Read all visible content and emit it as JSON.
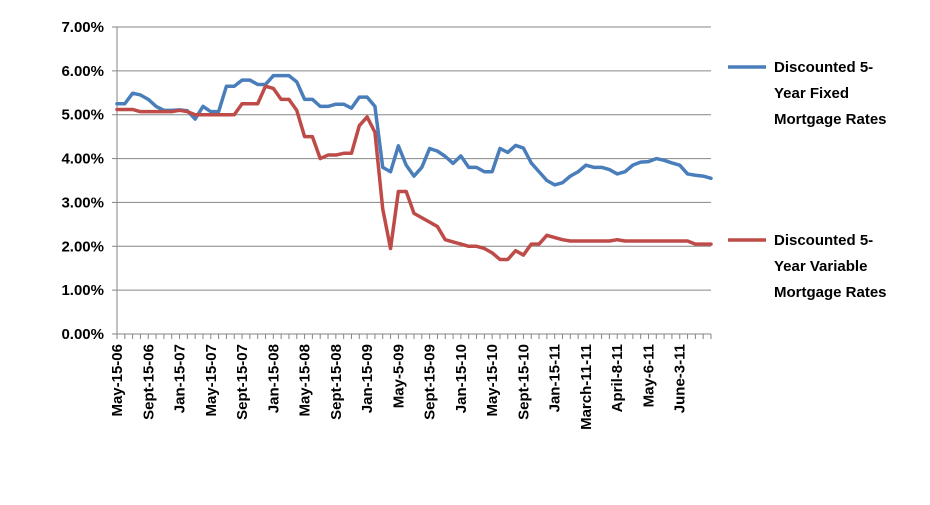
{
  "chart_data": {
    "type": "line",
    "title": "",
    "xlabel": "",
    "ylabel": "",
    "ylim": [
      0,
      0.07
    ],
    "y_tick_labels": [
      "0.00%",
      "1.00%",
      "2.00%",
      "3.00%",
      "4.00%",
      "5.00%",
      "6.00%",
      "7.00%"
    ],
    "x_tick_labels": [
      "May-15-06",
      "Sept-15-06",
      "Jan-15-07",
      "May-15-07",
      "Sept-15-07",
      "Jan-15-08",
      "May-15-08",
      "Sept-15-08",
      "Jan-15-09",
      "May-5-09",
      "Sept-15-09",
      "Jan-15-10",
      "May-15-10",
      "Sept-15-10",
      "Jan-15-11",
      "March-11-11",
      "April-8-11",
      "May-6-11",
      "June-3-11"
    ],
    "x_tick_positions": [
      0,
      4,
      8,
      12,
      16,
      20,
      24,
      28,
      32,
      36,
      40,
      44,
      48,
      52,
      56,
      60,
      64,
      68,
      72
    ],
    "grid": "horizontal",
    "legend_position": "right",
    "series": [
      {
        "name": "Discounted 5-Year Fixed Mortgage Rates",
        "color": "#4a7ebb",
        "values": [
          0.0525,
          0.0525,
          0.0549,
          0.0545,
          0.0535,
          0.0519,
          0.051,
          0.051,
          0.0511,
          0.0509,
          0.049,
          0.0519,
          0.0507,
          0.0507,
          0.0565,
          0.0565,
          0.0579,
          0.0579,
          0.0569,
          0.0569,
          0.0589,
          0.0589,
          0.0589,
          0.0575,
          0.0535,
          0.0535,
          0.0519,
          0.0519,
          0.0524,
          0.0524,
          0.0515,
          0.054,
          0.054,
          0.0519,
          0.038,
          0.037,
          0.0429,
          0.0385,
          0.036,
          0.038,
          0.0423,
          0.0417,
          0.0405,
          0.0389,
          0.0406,
          0.038,
          0.038,
          0.037,
          0.037,
          0.0423,
          0.0414,
          0.043,
          0.0424,
          0.039,
          0.037,
          0.035,
          0.034,
          0.0345,
          0.036,
          0.037,
          0.0385,
          0.038,
          0.038,
          0.0375,
          0.0365,
          0.037,
          0.0385,
          0.0392,
          0.0393,
          0.04,
          0.0396,
          0.039,
          0.0385,
          0.0365,
          0.0362,
          0.036,
          0.0355
        ]
      },
      {
        "name": "Discounted 5-Year Variable Mortgage Rates",
        "color": "#be4b48",
        "values": [
          0.0512,
          0.0512,
          0.0512,
          0.0507,
          0.0507,
          0.0507,
          0.0507,
          0.0507,
          0.051,
          0.0507,
          0.05,
          0.05,
          0.05,
          0.05,
          0.05,
          0.05,
          0.0525,
          0.0525,
          0.0525,
          0.0565,
          0.056,
          0.0535,
          0.0535,
          0.051,
          0.045,
          0.045,
          0.04,
          0.0408,
          0.0408,
          0.0412,
          0.0412,
          0.0475,
          0.0495,
          0.046,
          0.0285,
          0.0195,
          0.0325,
          0.0325,
          0.0275,
          0.0265,
          0.0255,
          0.0245,
          0.0215,
          0.021,
          0.0205,
          0.02,
          0.02,
          0.0195,
          0.0185,
          0.017,
          0.017,
          0.019,
          0.018,
          0.0205,
          0.0205,
          0.0225,
          0.022,
          0.0215,
          0.0212,
          0.0212,
          0.0212,
          0.0212,
          0.0212,
          0.0212,
          0.0215,
          0.0212,
          0.0212,
          0.0212,
          0.0212,
          0.0212,
          0.0212,
          0.0212,
          0.0212,
          0.0212,
          0.0205,
          0.0205,
          0.0205
        ]
      }
    ],
    "legend_lines": [
      [
        "Discounted 5-",
        "Year Fixed",
        "Mortgage Rates"
      ],
      [
        "Discounted 5-",
        "Year Variable",
        "Mortgage Rates"
      ]
    ]
  }
}
